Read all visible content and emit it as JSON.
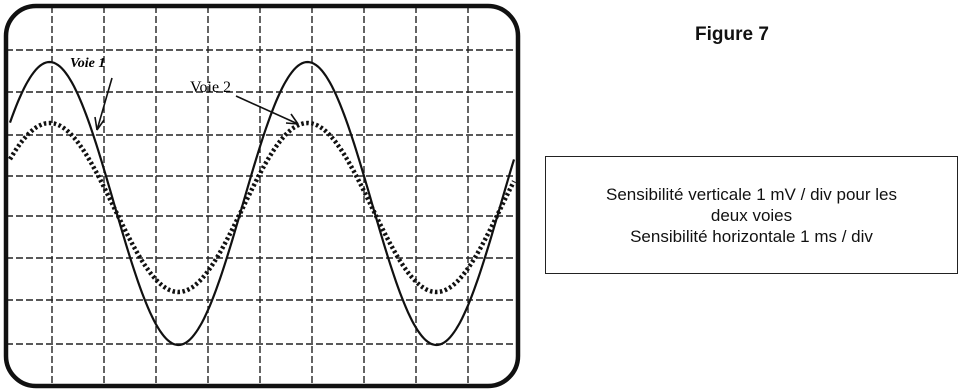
{
  "figure": {
    "title": "Figure 7"
  },
  "scope": {
    "channel_1_label": "Voie 1",
    "channel_2_label": "Voie 2"
  },
  "info_box": {
    "line1": "Sensibilité verticale 1 mV / div pour les",
    "line2": "deux voies",
    "line3": "Sensibilité horizontale 1 ms / div"
  },
  "colors": {
    "ink": "#111111",
    "background": "#ffffff"
  }
}
